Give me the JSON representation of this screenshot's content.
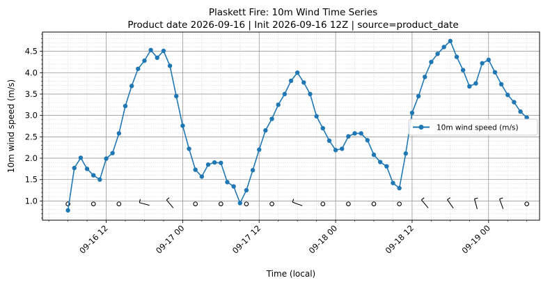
{
  "chart_data": {
    "type": "line",
    "title_lines": [
      "Plaskett Fire: 10m Wind Time Series",
      "Product date 2026-09-16 | Init 2026-09-16 12Z | source=product_date"
    ],
    "xlabel": "Time (local)",
    "ylabel": "10m wind speed (m/s)",
    "x_start": "2026-09-16 06:00",
    "x_step_hours": 1,
    "xlim": [
      "2026-09-16 02:00",
      "2026-09-19 08:00"
    ],
    "ylim": [
      0.55,
      4.95
    ],
    "yticks": [
      1.0,
      1.5,
      2.0,
      2.5,
      3.0,
      3.5,
      4.0,
      4.5
    ],
    "ytick_labels": [
      "1.0",
      "1.5",
      "2.0",
      "2.5",
      "3.0",
      "3.5",
      "4.0",
      "4.5"
    ],
    "xticks": [
      "2026-09-16 12:00",
      "2026-09-17 00:00",
      "2026-09-17 12:00",
      "2026-09-18 00:00",
      "2026-09-18 12:00",
      "2026-09-19 00:00"
    ],
    "xtick_labels": [
      "09-16 12",
      "09-17 00",
      "09-17 12",
      "09-18 00",
      "09-18 12",
      "09-19 00"
    ],
    "grid": true,
    "legend_position": "center-right",
    "series": [
      {
        "name": "10m wind speed (m/s)",
        "color": "#1f77b4",
        "values": [
          0.78,
          1.77,
          2.01,
          1.75,
          1.6,
          1.5,
          1.99,
          2.12,
          2.58,
          3.22,
          3.69,
          4.09,
          4.28,
          4.53,
          4.35,
          4.51,
          4.16,
          3.45,
          2.76,
          2.22,
          1.73,
          1.57,
          1.85,
          1.9,
          1.89,
          1.44,
          1.34,
          0.95,
          1.25,
          1.72,
          2.2,
          2.65,
          2.92,
          3.25,
          3.5,
          3.81,
          4.0,
          3.77,
          3.5,
          2.98,
          2.7,
          2.41,
          2.19,
          2.22,
          2.51,
          2.58,
          2.58,
          2.42,
          2.08,
          1.91,
          1.81,
          1.42,
          1.3,
          2.11,
          3.06,
          3.45,
          3.9,
          4.25,
          4.44,
          4.6,
          4.74,
          4.37,
          4.06,
          3.68,
          3.75,
          4.22,
          4.3,
          4.01,
          3.73,
          3.48,
          3.31,
          3.09,
          2.95
        ]
      }
    ],
    "wind_barbs": {
      "y_value": 0.93,
      "every_hours": 4,
      "items": [
        {
          "time": "2026-09-16 06:00",
          "type": "calm"
        },
        {
          "time": "2026-09-16 10:00",
          "type": "calm"
        },
        {
          "time": "2026-09-16 14:00",
          "type": "calm"
        },
        {
          "time": "2026-09-16 18:00",
          "type": "barb",
          "dir": 285
        },
        {
          "time": "2026-09-16 22:00",
          "type": "barb",
          "dir": 320
        },
        {
          "time": "2026-09-17 02:00",
          "type": "calm"
        },
        {
          "time": "2026-09-17 06:00",
          "type": "calm"
        },
        {
          "time": "2026-09-17 10:00",
          "type": "calm"
        },
        {
          "time": "2026-09-17 14:00",
          "type": "calm"
        },
        {
          "time": "2026-09-17 18:00",
          "type": "barb",
          "dir": 290
        },
        {
          "time": "2026-09-17 22:00",
          "type": "calm"
        },
        {
          "time": "2026-09-18 02:00",
          "type": "calm"
        },
        {
          "time": "2026-09-18 06:00",
          "type": "calm"
        },
        {
          "time": "2026-09-18 10:00",
          "type": "calm"
        },
        {
          "time": "2026-09-18 14:00",
          "type": "barb",
          "dir": 320
        },
        {
          "time": "2026-09-18 18:00",
          "type": "barb",
          "dir": 325
        },
        {
          "time": "2026-09-18 22:00",
          "type": "barb",
          "dir": 345
        },
        {
          "time": "2026-09-19 02:00",
          "type": "barb",
          "dir": 340
        },
        {
          "time": "2026-09-19 06:00",
          "type": "calm"
        }
      ]
    }
  }
}
